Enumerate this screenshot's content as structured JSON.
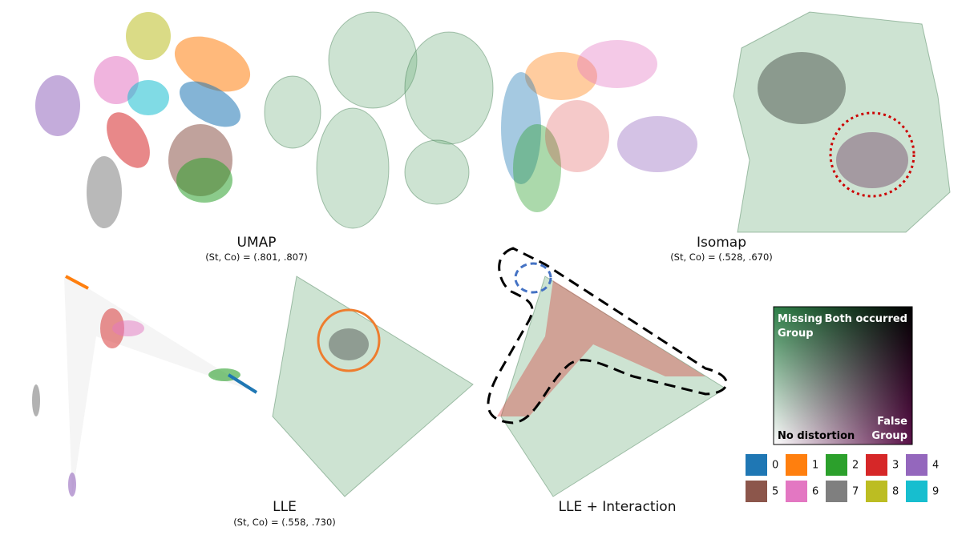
{
  "panels": [
    {
      "label": "UMAP",
      "score": "(St, Co) = (.801, .807)"
    },
    {
      "label": "Isomap",
      "score": "(St, Co) = (.528, .670)"
    },
    {
      "label": "LLE",
      "score": "(St, Co) = (.558, .730)"
    },
    {
      "label": "LLE + Interaction"
    }
  ],
  "colormap": {
    "missing_group": [
      "Missing",
      "Group"
    ],
    "both_occurred": "Both occurred",
    "no_distortion": "No distortion",
    "false_group": [
      "False",
      "Group"
    ]
  },
  "classes": [
    {
      "label": "0",
      "color": "#1f77b4"
    },
    {
      "label": "1",
      "color": "#ff7f0e"
    },
    {
      "label": "2",
      "color": "#2ca02c"
    },
    {
      "label": "3",
      "color": "#d62728"
    },
    {
      "label": "4",
      "color": "#9467bd"
    },
    {
      "label": "5",
      "color": "#8c564b"
    },
    {
      "label": "6",
      "color": "#e377c2"
    },
    {
      "label": "7",
      "color": "#7f7f7f"
    },
    {
      "label": "8",
      "color": "#bcbd22"
    },
    {
      "label": "9",
      "color": "#17becf"
    }
  ]
}
